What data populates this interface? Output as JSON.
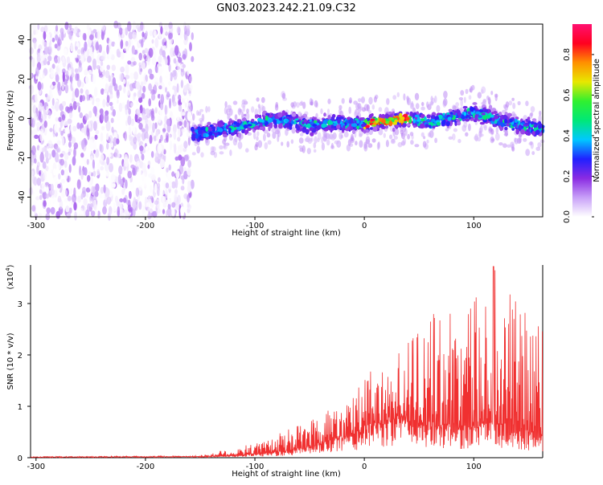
{
  "chart_data": [
    {
      "type": "heatmap",
      "title": "GN03.2023.242.21.09.C32",
      "xlabel": "Height of straight line (km)",
      "ylabel": "Frequency (Hz)",
      "xlim": [
        -305,
        163
      ],
      "ylim": [
        -50,
        48
      ],
      "xticks": [
        -300,
        -200,
        -100,
        0,
        100
      ],
      "xtick_labels": [
        "-300",
        "-200",
        "-100",
        "0",
        "100"
      ],
      "yticks": [
        -40,
        -20,
        0,
        20,
        40
      ],
      "ytick_labels": [
        "-40",
        "-20",
        "0",
        "20",
        "40"
      ],
      "colorbar": {
        "label": "Normalized spectral amplitude",
        "range": [
          0,
          0.95
        ],
        "ticks": [
          0.0,
          0.2,
          0.4,
          0.6,
          0.8
        ],
        "tick_labels": [
          "0.0",
          "0.2",
          "0.4",
          "0.6",
          "0.8"
        ],
        "colors": [
          "#ffffff",
          "#c8a0f8",
          "#8a2be2",
          "#2020ff",
          "#00c8ff",
          "#00e878",
          "#30f030",
          "#e8e800",
          "#ff9000",
          "#ff0020",
          "#ff1070"
        ]
      },
      "regions": [
        {
          "name": "noise",
          "x_range": [
            -305,
            -157
          ],
          "freq_range": [
            -50,
            48
          ],
          "amplitude_range": [
            0.0,
            0.15
          ]
        },
        {
          "name": "signal-band",
          "x_range": [
            -157,
            163
          ],
          "freq_center_profile": {
            "x": [
              -157,
              -120,
              -80,
              -50,
              -30,
              0,
              20,
              40,
              60,
              100,
              130,
              163
            ],
            "f": [
              -8,
              -5,
              0,
              -4,
              -2,
              -3,
              -1,
              0,
              -2,
              3,
              -2,
              -6
            ]
          },
          "band_width_hz": 10,
          "peak_amplitude": 0.92,
          "peak_x": [
            0,
            45
          ]
        }
      ]
    },
    {
      "type": "line",
      "xlabel": "Height of straight line (km)",
      "ylabel": "SNR (10 * v/v)",
      "scale_label": "(x10",
      "scale_exponent": "4",
      "scale_suffix": ")",
      "xlim": [
        -305,
        163
      ],
      "ylim": [
        0,
        3.75
      ],
      "xticks": [
        -300,
        -200,
        -100,
        0,
        100
      ],
      "xtick_labels": [
        "-300",
        "-200",
        "-100",
        "0",
        "100"
      ],
      "yticks": [
        0,
        1,
        2,
        3
      ],
      "ytick_labels": [
        "0",
        "1",
        "2",
        "3"
      ],
      "color": "#f03030",
      "envelope": {
        "x": [
          -305,
          -150,
          -130,
          -110,
          -90,
          -70,
          -50,
          -30,
          -10,
          10,
          30,
          50,
          70,
          90,
          110,
          120,
          140,
          163
        ],
        "base": [
          0.01,
          0.02,
          0.03,
          0.05,
          0.08,
          0.12,
          0.2,
          0.3,
          0.45,
          0.6,
          0.75,
          0.65,
          0.55,
          0.55,
          0.6,
          0.6,
          0.5,
          0.4
        ],
        "peak": [
          0.02,
          0.04,
          0.15,
          0.25,
          0.35,
          0.55,
          0.8,
          1.1,
          1.45,
          1.75,
          2.05,
          2.6,
          2.9,
          3.0,
          3.2,
          3.72,
          3.0,
          2.6
        ]
      },
      "max_value": 3.72,
      "max_at_x": 118
    }
  ]
}
